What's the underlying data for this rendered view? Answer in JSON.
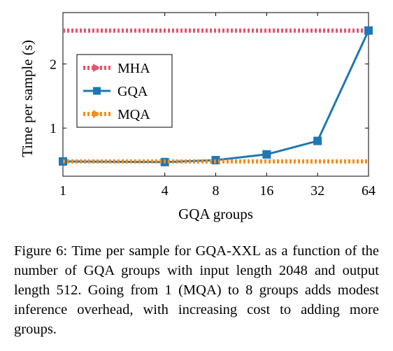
{
  "chart_data": {
    "type": "line",
    "xlabel": "GQA groups",
    "ylabel": "Time per sample (s)",
    "x_scale": "log2",
    "x_ticks": [
      1,
      4,
      8,
      16,
      32,
      64
    ],
    "x_tick_labels": [
      "1",
      "4",
      "8",
      "16",
      "32",
      "64"
    ],
    "xlim": [
      1,
      64
    ],
    "y_ticks": [
      1,
      2
    ],
    "y_tick_labels": [
      "1",
      "2"
    ],
    "ylim": [
      0.25,
      2.8
    ],
    "grid": false,
    "legend": "left",
    "series": [
      {
        "name": "MHA",
        "style": "dotted-hline",
        "color": "#e8536e",
        "x": [
          1,
          64
        ],
        "values": [
          2.52,
          2.52
        ]
      },
      {
        "name": "GQA",
        "style": "solid-line-square-markers",
        "color": "#1f77b4",
        "x": [
          1,
          4,
          8,
          16,
          32,
          64
        ],
        "values": [
          0.48,
          0.47,
          0.5,
          0.59,
          0.8,
          2.52
        ]
      },
      {
        "name": "MQA",
        "style": "dotted-hline",
        "color": "#f28e1c",
        "x": [
          1,
          64
        ],
        "values": [
          0.48,
          0.48
        ]
      }
    ]
  },
  "caption": {
    "text": "Figure 6: Time per sample for GQA-XXL as a function of the number of GQA groups with input length 2048 and output length 512. Going from 1 (MQA) to 8 groups adds modest inference overhead, with increasing cost to adding more groups."
  }
}
